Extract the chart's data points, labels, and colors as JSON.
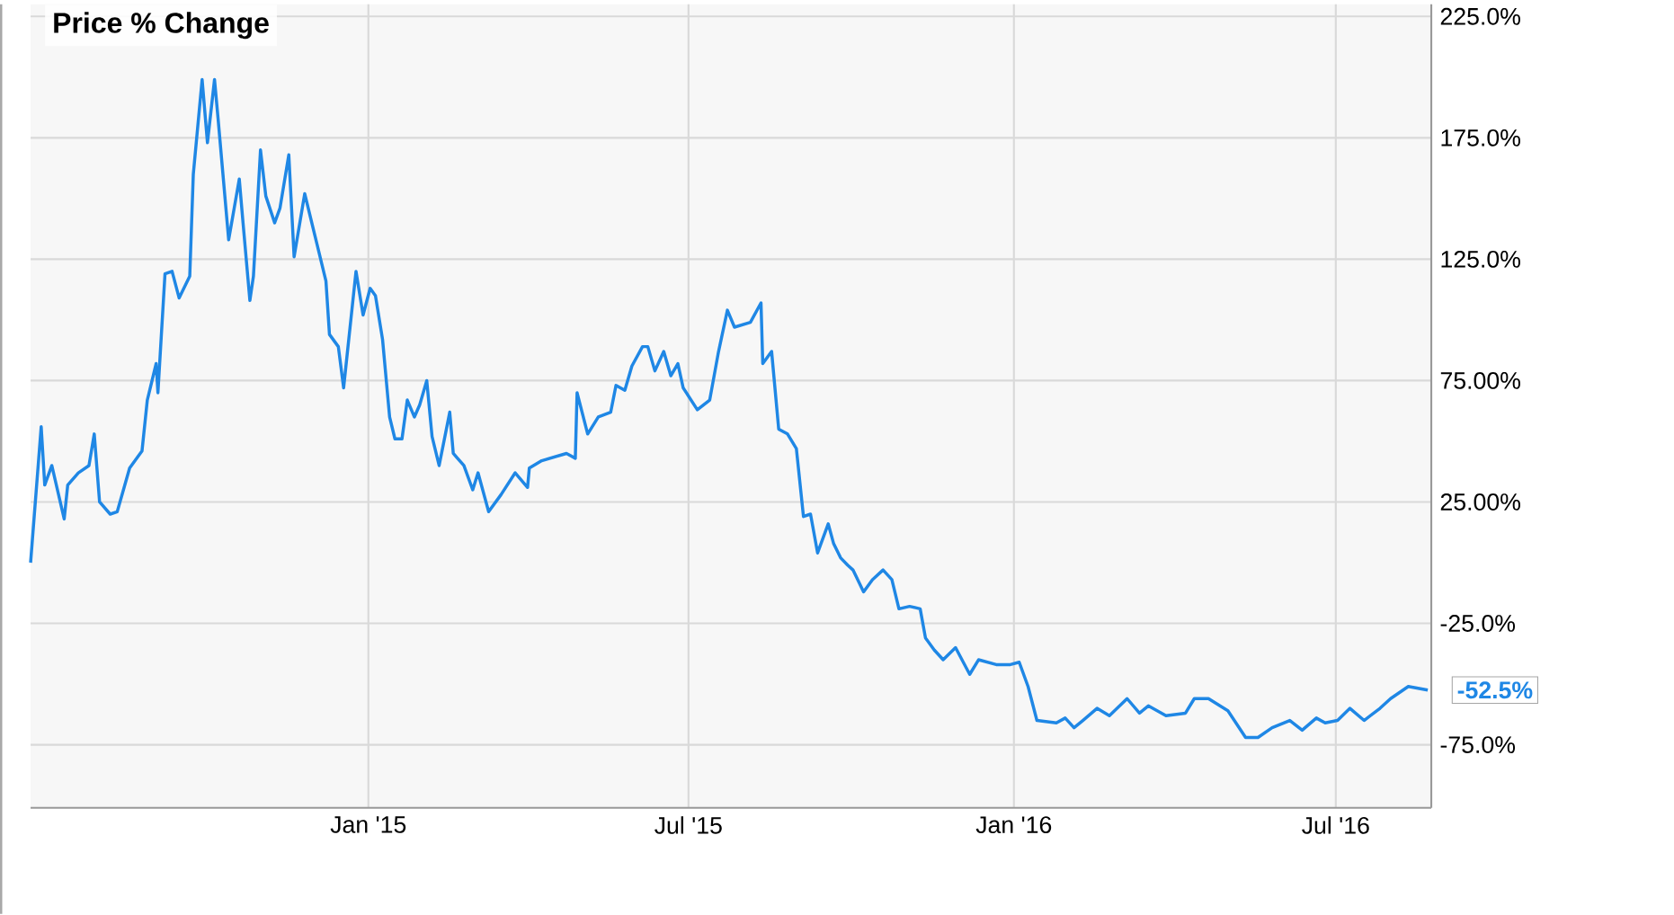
{
  "chart_data": {
    "type": "line",
    "title": "Price % Change",
    "color": "#1f87e5",
    "grid": true,
    "x": [
      "2014-06-24",
      "2014-06-30",
      "2014-07-02",
      "2014-07-06",
      "2014-07-13",
      "2014-07-15",
      "2014-07-21",
      "2014-07-27",
      "2014-07-30",
      "2014-08-02",
      "2014-08-08",
      "2014-08-12",
      "2014-08-19",
      "2014-08-26",
      "2014-08-29",
      "2014-09-03",
      "2014-09-04",
      "2014-09-08",
      "2014-09-12",
      "2014-09-16",
      "2014-09-22",
      "2014-09-24",
      "2014-09-29",
      "2014-10-02",
      "2014-10-06",
      "2014-10-08",
      "2014-10-14",
      "2014-10-20",
      "2014-10-22",
      "2014-10-26",
      "2014-10-28",
      "2014-11-01",
      "2014-11-04",
      "2014-11-09",
      "2014-11-12",
      "2014-11-17",
      "2014-11-20",
      "2014-11-26",
      "2014-12-03",
      "2014-12-08",
      "2014-12-10",
      "2014-12-15",
      "2014-12-18",
      "2014-12-25",
      "2014-12-29",
      "2015-01-02",
      "2015-01-05",
      "2015-01-09",
      "2015-01-13",
      "2015-01-16",
      "2015-01-20",
      "2015-01-23",
      "2015-01-27",
      "2015-01-30",
      "2015-02-03",
      "2015-02-06",
      "2015-02-10",
      "2015-02-16",
      "2015-02-18",
      "2015-02-24",
      "2015-03-01",
      "2015-03-04",
      "2015-03-10",
      "2015-03-17",
      "2015-03-25",
      "2015-04-01",
      "2015-04-02",
      "2015-04-09",
      "2015-04-23",
      "2015-04-28",
      "2015-04-29",
      "2015-05-05",
      "2015-05-11",
      "2015-05-18",
      "2015-05-21",
      "2015-05-26",
      "2015-05-30",
      "2015-06-05",
      "2015-06-08",
      "2015-06-12",
      "2015-06-17",
      "2015-06-21",
      "2015-06-25",
      "2015-06-28",
      "2015-07-06",
      "2015-07-13",
      "2015-07-18",
      "2015-07-23",
      "2015-07-27",
      "2015-08-05",
      "2015-08-11",
      "2015-08-12",
      "2015-08-17",
      "2015-08-21",
      "2015-08-26",
      "2015-08-31",
      "2015-09-04",
      "2015-09-08",
      "2015-09-12",
      "2015-09-18",
      "2015-09-21",
      "2015-09-25",
      "2015-09-29",
      "2015-10-02",
      "2015-10-08",
      "2015-10-13",
      "2015-10-19",
      "2015-10-24",
      "2015-10-28",
      "2015-11-03",
      "2015-11-09",
      "2015-11-12",
      "2015-11-17",
      "2015-11-22",
      "2015-11-29",
      "2015-12-07",
      "2015-12-12",
      "2015-12-22",
      "2015-12-30",
      "2016-01-04",
      "2016-01-09",
      "2016-01-14",
      "2016-01-25",
      "2016-01-30",
      "2016-02-04",
      "2016-02-09",
      "2016-02-17",
      "2016-02-24",
      "2016-03-05",
      "2016-03-12",
      "2016-03-17",
      "2016-03-27",
      "2016-04-07",
      "2016-04-12",
      "2016-04-20",
      "2016-05-01",
      "2016-05-11",
      "2016-05-18",
      "2016-05-26",
      "2016-06-05",
      "2016-06-12",
      "2016-06-20",
      "2016-06-25",
      "2016-07-02",
      "2016-07-09",
      "2016-07-17",
      "2016-07-26",
      "2016-08-01",
      "2016-08-11",
      "2016-08-22"
    ],
    "values": [
      0,
      56,
      32,
      40,
      18,
      32,
      37,
      40,
      53,
      25,
      20,
      21,
      39,
      46,
      67,
      82,
      70,
      119,
      120,
      109,
      118,
      160,
      199,
      173,
      199,
      183,
      133,
      158,
      141,
      108,
      118,
      170,
      151,
      140,
      146,
      168,
      126,
      152,
      131,
      116,
      94,
      89,
      72,
      120,
      102,
      113,
      110,
      92,
      60,
      51,
      51,
      67,
      60,
      65,
      75,
      52,
      40,
      62,
      45,
      40,
      30,
      37,
      21,
      28,
      37,
      31,
      39,
      42,
      45,
      43,
      70,
      53,
      60,
      62,
      73,
      71,
      81,
      89,
      89,
      79,
      87,
      77,
      82,
      72,
      63,
      67,
      87,
      104,
      97,
      99,
      107,
      82,
      87,
      55,
      53,
      47,
      19,
      20,
      4,
      16,
      8,
      2,
      -1,
      -3,
      -12,
      -7,
      -3,
      -7,
      -19,
      -18,
      -19,
      -31,
      -36,
      -40,
      -35,
      -46,
      -40,
      -42,
      -42,
      -41,
      -51,
      -65,
      -66,
      -64,
      -68,
      -65,
      -60,
      -63,
      -56,
      -62,
      -59,
      -63,
      -62,
      -56,
      -56,
      -61,
      -72,
      -72,
      -68,
      -65,
      -69,
      -64,
      -66,
      -65,
      -60,
      -65,
      -60,
      -56,
      -51,
      -52.5
    ],
    "xlim": [
      "2014-06-24",
      "2016-08-24"
    ],
    "ylim": [
      -101,
      230
    ],
    "xticks": [
      {
        "value": "2015-01-01",
        "label": "Jan '15"
      },
      {
        "value": "2015-07-01",
        "label": "Jul '15"
      },
      {
        "value": "2016-01-01",
        "label": "Jan '16"
      },
      {
        "value": "2016-07-01",
        "label": "Jul '16"
      }
    ],
    "yticks": [
      {
        "value": -75,
        "label": "-75.0%"
      },
      {
        "value": -25,
        "label": "-25.0%"
      },
      {
        "value": 25,
        "label": "25.00%"
      },
      {
        "value": 75,
        "label": "75.00%"
      },
      {
        "value": 125,
        "label": "125.0%"
      },
      {
        "value": 175,
        "label": "175.0%"
      },
      {
        "value": 225,
        "label": "225.0%"
      }
    ],
    "annotations": [
      {
        "text": "-52.5%",
        "x": "2016-08-22",
        "y": -52.5
      }
    ]
  }
}
